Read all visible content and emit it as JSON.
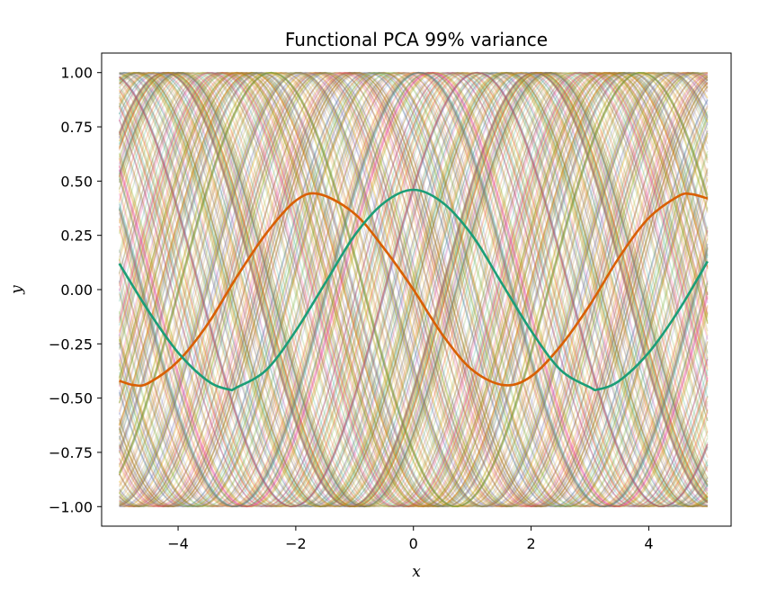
{
  "chart_data": {
    "type": "line",
    "title": "Functional PCA 99% variance",
    "xlabel": "x",
    "ylabel": "y",
    "xlim": [
      -5.3,
      5.4
    ],
    "ylim": [
      -1.09,
      1.09
    ],
    "x_ticks": [
      -4,
      -2,
      0,
      2,
      4
    ],
    "x_tick_labels": [
      "−4",
      "−2",
      "0",
      "2",
      "4"
    ],
    "y_ticks": [
      -1.0,
      -0.75,
      -0.5,
      -0.25,
      0.0,
      0.25,
      0.5,
      0.75,
      1.0
    ],
    "y_tick_labels": [
      "−1.00",
      "−0.75",
      "−0.50",
      "−0.25",
      "0.00",
      "0.25",
      "0.50",
      "0.75",
      "1.00"
    ],
    "grid": false,
    "legend": "none",
    "background_curves": {
      "description_visible": "many faint sinusoids y = sin(x + phase), x from -5 to 5",
      "count": 300,
      "x_range": [
        -5,
        5
      ],
      "amplitude": 1.0,
      "opacity": 0.2,
      "colors": [
        "#1b9e77",
        "#d95f02",
        "#7570b3",
        "#e7298a",
        "#66a61e",
        "#e6ab02",
        "#a6761d"
      ]
    },
    "series": [
      {
        "color": "#d95f02",
        "x": [
          -5.0,
          -4.75,
          -4.5,
          -4.0,
          -3.5,
          -3.0,
          -2.5,
          -2.0,
          -1.6,
          -1.0,
          -0.5,
          0.0,
          0.5,
          1.0,
          1.54,
          2.0,
          2.5,
          3.0,
          3.5,
          4.0,
          4.5,
          4.72,
          5.0
        ],
        "y": [
          -0.42,
          -0.44,
          -0.43,
          -0.33,
          -0.16,
          0.06,
          0.26,
          0.41,
          0.44,
          0.35,
          0.19,
          0.0,
          -0.21,
          -0.37,
          -0.44,
          -0.4,
          -0.26,
          -0.07,
          0.15,
          0.33,
          0.43,
          0.44,
          0.42
        ]
      },
      {
        "color": "#1b9e77",
        "x": [
          -5.0,
          -4.5,
          -4.0,
          -3.5,
          -3.14,
          -3.0,
          -2.5,
          -2.0,
          -1.5,
          -1.0,
          -0.5,
          0.0,
          0.5,
          1.0,
          1.5,
          2.0,
          2.5,
          3.0,
          3.14,
          3.5,
          4.0,
          4.5,
          5.0
        ],
        "y": [
          0.12,
          -0.1,
          -0.29,
          -0.42,
          -0.46,
          -0.45,
          -0.37,
          -0.19,
          0.03,
          0.25,
          0.4,
          0.46,
          0.4,
          0.25,
          0.03,
          -0.19,
          -0.37,
          -0.45,
          -0.46,
          -0.42,
          -0.29,
          -0.1,
          0.13
        ]
      }
    ]
  }
}
